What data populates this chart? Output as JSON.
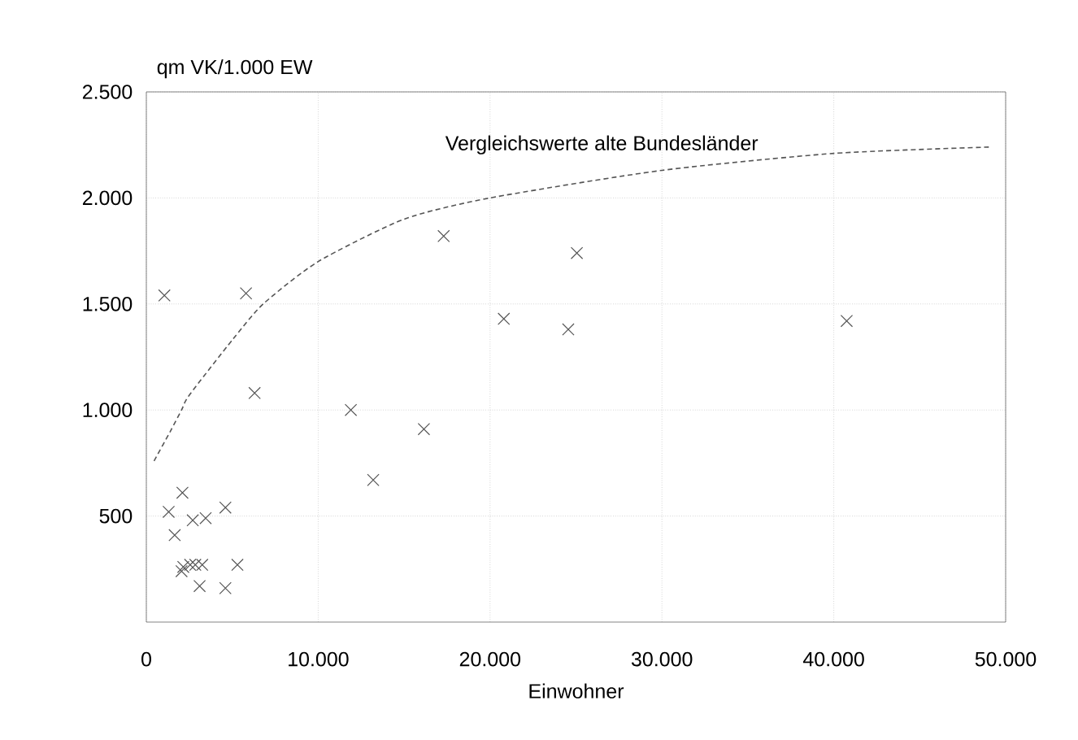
{
  "chart_data": {
    "type": "scatter",
    "xlabel": "Einwohner",
    "ylabel": "qm VK/1.000 EW",
    "xlim": [
      0,
      50000
    ],
    "ylim": [
      0,
      2500
    ],
    "xticks": [
      0,
      {
        "value": 10000,
        "label": "10.000"
      },
      {
        "value": 20000,
        "label": "20.000"
      },
      {
        "value": 30000,
        "label": "30.000"
      },
      {
        "value": 40000,
        "label": "40.000"
      },
      {
        "value": 50000,
        "label": "50.000"
      }
    ],
    "yticks": [
      500,
      {
        "value": 1000,
        "label": "1.000"
      },
      {
        "value": 1500,
        "label": "1.500"
      },
      {
        "value": 2000,
        "label": "2.000"
      },
      {
        "value": 2500,
        "label": "2.500"
      }
    ],
    "grid": true,
    "series": [
      {
        "color": "#555555",
        "marker": "cross",
        "x": [
          1050,
          5800,
          6300,
          11900,
          13200,
          16150,
          17300,
          20800,
          24550,
          25050,
          40750,
          2100,
          1300,
          4600,
          2700,
          3450,
          1650,
          2050,
          2150,
          2550,
          2850,
          3250,
          3100,
          4600,
          5300
        ],
        "values": [
          1540,
          1550,
          1080,
          1000,
          670,
          910,
          1820,
          1430,
          1380,
          1740,
          1420,
          610,
          520,
          540,
          480,
          490,
          410,
          240,
          260,
          270,
          270,
          270,
          170,
          160,
          270
        ]
      },
      {
        "type": "line",
        "name": "Vergleichswerte alte Bundesländer",
        "color": "#555555",
        "line_style": "dashed",
        "marker": "none",
        "x": [
          450,
          1400,
          2050,
          2500,
          5000,
          6800,
          10000,
          15000,
          20000,
          30000,
          40000,
          49100
        ],
        "values": [
          760,
          900,
          1000,
          1070,
          1330,
          1500,
          1700,
          1900,
          2000,
          2130,
          2210,
          2240
        ]
      }
    ]
  }
}
